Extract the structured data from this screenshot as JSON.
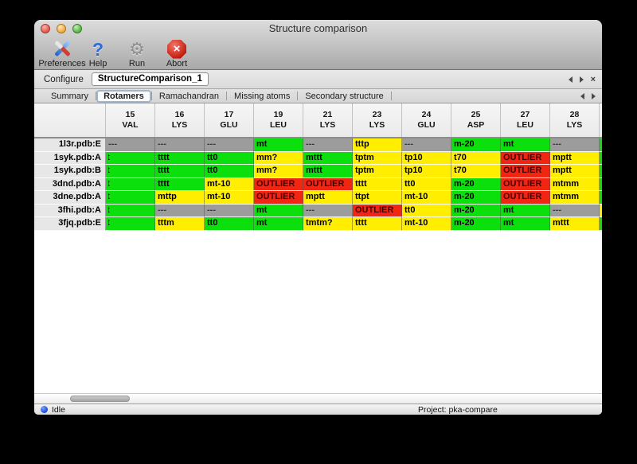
{
  "window": {
    "title": "Structure comparison"
  },
  "toolbar": {
    "buttons": [
      {
        "name": "preferences",
        "label": "Preferences",
        "icon": "tools-icon"
      },
      {
        "name": "help",
        "label": "Help",
        "icon": "question-icon"
      },
      {
        "name": "run",
        "label": "Run",
        "icon": "gear-icon"
      },
      {
        "name": "abort",
        "label": "Abort",
        "icon": "stop-x-icon"
      }
    ]
  },
  "configure": {
    "label": "Configure",
    "value": "StructureComparison_1"
  },
  "tabs": {
    "items": [
      {
        "label": "Summary",
        "selected": false
      },
      {
        "label": "Rotamers",
        "selected": true
      },
      {
        "label": "Ramachandran",
        "selected": false
      },
      {
        "label": "Missing atoms",
        "selected": false
      },
      {
        "label": "Secondary structure",
        "selected": false
      }
    ]
  },
  "colors": {
    "green": "#0ce00c",
    "yellow": "#ffee00",
    "red": "#f02613",
    "gray": "#9c9c9c"
  },
  "table": {
    "columns": [
      {
        "num": "15",
        "res": "VAL"
      },
      {
        "num": "16",
        "res": "LYS"
      },
      {
        "num": "17",
        "res": "GLU"
      },
      {
        "num": "19",
        "res": "LEU"
      },
      {
        "num": "21",
        "res": "LYS"
      },
      {
        "num": "23",
        "res": "LYS"
      },
      {
        "num": "24",
        "res": "GLU"
      },
      {
        "num": "25",
        "res": "ASP"
      },
      {
        "num": "27",
        "res": "LEU"
      },
      {
        "num": "28",
        "res": "LYS"
      }
    ],
    "rows": [
      {
        "label": "1l3r.pdb:E",
        "edge": "green",
        "cells": [
          {
            "t": "---",
            "s": "gray"
          },
          {
            "t": "---",
            "s": "gray"
          },
          {
            "t": "---",
            "s": "gray"
          },
          {
            "t": "mt",
            "s": "green"
          },
          {
            "t": "---",
            "s": "gray"
          },
          {
            "t": "tttp",
            "s": "yellow"
          },
          {
            "t": "---",
            "s": "gray"
          },
          {
            "t": "m-20",
            "s": "green"
          },
          {
            "t": "mt",
            "s": "green"
          },
          {
            "t": "---",
            "s": "gray"
          }
        ]
      },
      {
        "label": "1syk.pdb:A",
        "edge": "green",
        "cells": [
          {
            "t": "t",
            "s": "green",
            "clip": true
          },
          {
            "t": "tttt",
            "s": "green"
          },
          {
            "t": "tt0",
            "s": "green"
          },
          {
            "t": "mm?",
            "s": "yellow"
          },
          {
            "t": "mttt",
            "s": "green"
          },
          {
            "t": "tptm",
            "s": "yellow"
          },
          {
            "t": "tp10",
            "s": "yellow"
          },
          {
            "t": "t70",
            "s": "yellow"
          },
          {
            "t": "OUTLIER",
            "s": "red"
          },
          {
            "t": "mptt",
            "s": "yellow"
          }
        ]
      },
      {
        "label": "1syk.pdb:B",
        "edge": "green",
        "cells": [
          {
            "t": "t",
            "s": "green",
            "clip": true
          },
          {
            "t": "tttt",
            "s": "green"
          },
          {
            "t": "tt0",
            "s": "green"
          },
          {
            "t": "mm?",
            "s": "yellow"
          },
          {
            "t": "mttt",
            "s": "green"
          },
          {
            "t": "tptm",
            "s": "yellow"
          },
          {
            "t": "tp10",
            "s": "yellow"
          },
          {
            "t": "t70",
            "s": "yellow"
          },
          {
            "t": "OUTLIER",
            "s": "red"
          },
          {
            "t": "mptt",
            "s": "yellow"
          }
        ]
      },
      {
        "label": "3dnd.pdb:A",
        "edge": "green",
        "cells": [
          {
            "t": "t",
            "s": "green",
            "clip": true
          },
          {
            "t": "tttt",
            "s": "green"
          },
          {
            "t": "mt-10",
            "s": "yellow"
          },
          {
            "t": "OUTLIER",
            "s": "red"
          },
          {
            "t": "OUTLIER",
            "s": "red"
          },
          {
            "t": "tttt",
            "s": "yellow"
          },
          {
            "t": "tt0",
            "s": "yellow"
          },
          {
            "t": "m-20",
            "s": "green"
          },
          {
            "t": "OUTLIER",
            "s": "red"
          },
          {
            "t": "mtmm",
            "s": "yellow"
          }
        ]
      },
      {
        "label": "3dne.pdb:A",
        "edge": "green",
        "cells": [
          {
            "t": "t",
            "s": "green",
            "clip": true
          },
          {
            "t": "mttp",
            "s": "yellow"
          },
          {
            "t": "mt-10",
            "s": "yellow"
          },
          {
            "t": "OUTLIER",
            "s": "red"
          },
          {
            "t": "mptt",
            "s": "yellow"
          },
          {
            "t": "ttpt",
            "s": "yellow"
          },
          {
            "t": "mt-10",
            "s": "yellow"
          },
          {
            "t": "m-20",
            "s": "green"
          },
          {
            "t": "OUTLIER",
            "s": "red"
          },
          {
            "t": "mtmm",
            "s": "yellow"
          }
        ]
      },
      {
        "label": "3fhi.pdb:A",
        "edge": "yellow",
        "cells": [
          {
            "t": "t",
            "s": "green",
            "clip": true
          },
          {
            "t": "---",
            "s": "gray"
          },
          {
            "t": "---",
            "s": "gray"
          },
          {
            "t": "mt",
            "s": "green"
          },
          {
            "t": "---",
            "s": "gray"
          },
          {
            "t": "OUTLIER",
            "s": "red"
          },
          {
            "t": "tt0",
            "s": "yellow"
          },
          {
            "t": "m-20",
            "s": "green"
          },
          {
            "t": "mt",
            "s": "green"
          },
          {
            "t": "---",
            "s": "gray"
          }
        ]
      },
      {
        "label": "3fjq.pdb:E",
        "edge": "green",
        "cells": [
          {
            "t": "t",
            "s": "green",
            "clip": true
          },
          {
            "t": "tttm",
            "s": "yellow"
          },
          {
            "t": "tt0",
            "s": "green"
          },
          {
            "t": "mt",
            "s": "green"
          },
          {
            "t": "tmtm?",
            "s": "yellow"
          },
          {
            "t": "tttt",
            "s": "yellow"
          },
          {
            "t": "mt-10",
            "s": "yellow"
          },
          {
            "t": "m-20",
            "s": "green"
          },
          {
            "t": "mt",
            "s": "green"
          },
          {
            "t": "mttt",
            "s": "yellow"
          }
        ]
      }
    ]
  },
  "statusbar": {
    "status": "Idle",
    "project": "Project: pka-compare"
  }
}
